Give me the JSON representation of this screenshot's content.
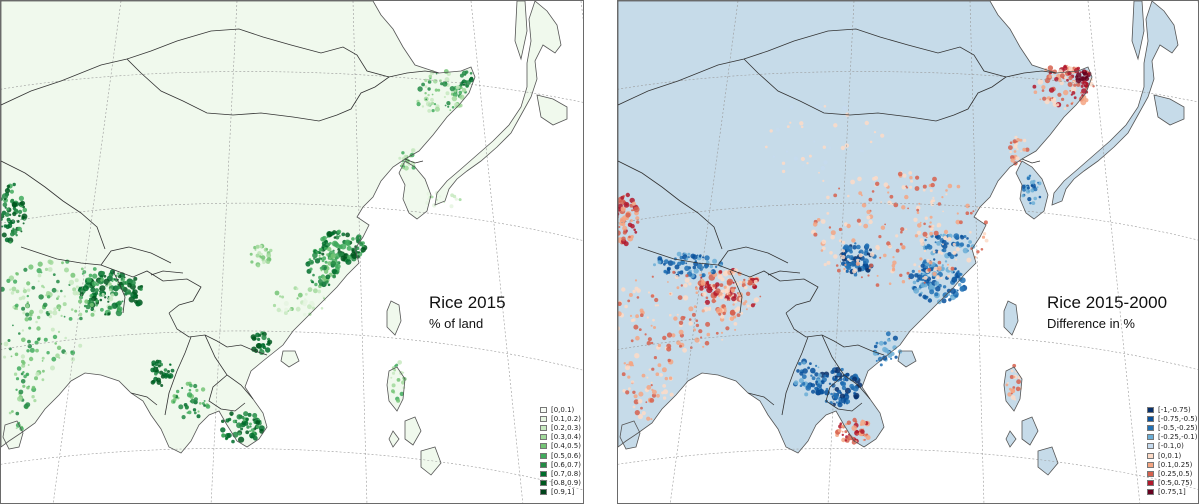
{
  "left_panel": {
    "title": "Rice 2015",
    "subtitle": "% of land",
    "land_color": "#f0f9ed",
    "legend": [
      {
        "label": "[0,0.1)",
        "color": "#f7fcf5"
      },
      {
        "label": "[0.1,0.2)",
        "color": "#e5f5e0"
      },
      {
        "label": "[0.2,0.3)",
        "color": "#c7e9c0"
      },
      {
        "label": "[0.3,0.4)",
        "color": "#a1d99b"
      },
      {
        "label": "[0.4,0.5)",
        "color": "#74c476"
      },
      {
        "label": "[0.5,0.6)",
        "color": "#41ab5d"
      },
      {
        "label": "[0.6,0.7)",
        "color": "#238b45"
      },
      {
        "label": "[0.7,0.8)",
        "color": "#006d2c"
      },
      {
        "label": "[0.8,0.9)",
        "color": "#00581f"
      },
      {
        "label": "[0.9,1]",
        "color": "#00441b"
      }
    ]
  },
  "right_panel": {
    "title": "Rice 2015-2000",
    "subtitle": "Difference in %",
    "land_color": "#c6dbe9",
    "legend": [
      {
        "label": "[-1,-0.75)",
        "color": "#08306b"
      },
      {
        "label": "[-0.75,-0.5)",
        "color": "#08519c"
      },
      {
        "label": "[-0.5,-0.25)",
        "color": "#2171b5"
      },
      {
        "label": "[-0.25,-0.1)",
        "color": "#6baed6"
      },
      {
        "label": "[-0.1,0)",
        "color": "#c6dbef"
      },
      {
        "label": "[0,0.1)",
        "color": "#fddbc7"
      },
      {
        "label": "[0.1,0.25)",
        "color": "#f4a582"
      },
      {
        "label": "[0.25,0.5)",
        "color": "#d6604d"
      },
      {
        "label": "[0.5,0.75)",
        "color": "#b2182b"
      },
      {
        "label": "[0.75,1]",
        "color": "#67001f"
      }
    ]
  }
}
